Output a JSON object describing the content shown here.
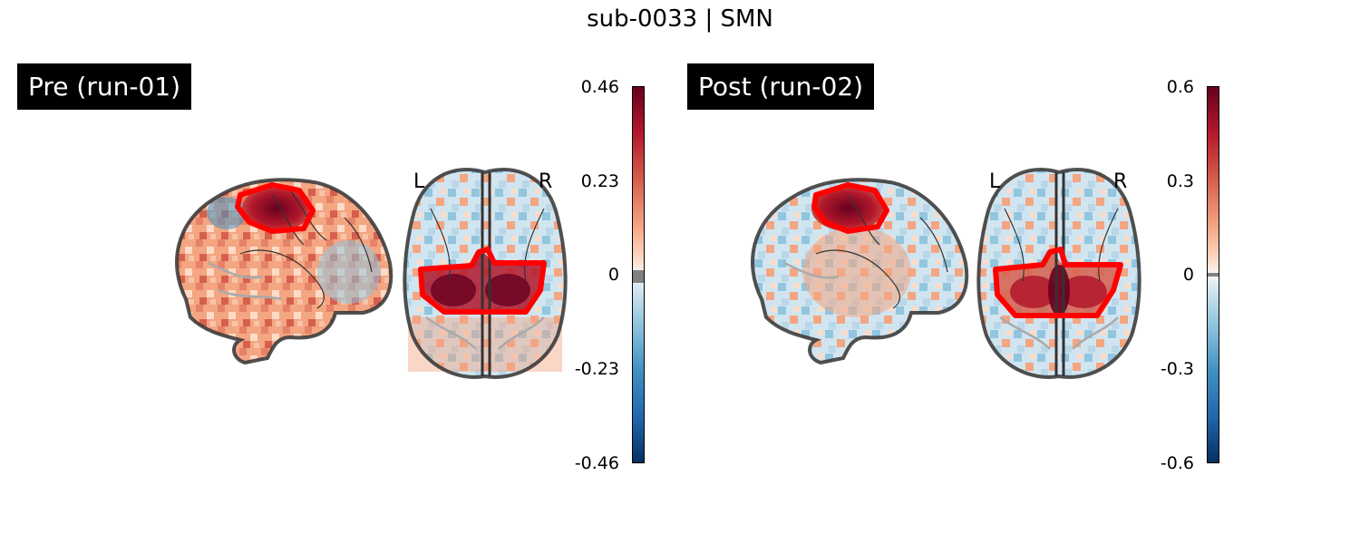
{
  "title": "sub-0033 | SMN",
  "panels": [
    {
      "label": "Pre (run-01)",
      "hemisphere_left": "L",
      "hemisphere_right": "R",
      "colorbar": {
        "ticks": [
          "0.46",
          "0.23",
          "0",
          "-0.23",
          "-0.46"
        ],
        "min": -0.46,
        "max": 0.46,
        "colormap": "RdBu_r"
      }
    },
    {
      "label": "Post (run-02)",
      "hemisphere_left": "L",
      "hemisphere_right": "R",
      "colorbar": {
        "ticks": [
          "0.6",
          "0.3",
          "0",
          "-0.3",
          "-0.6"
        ],
        "min": -0.6,
        "max": 0.6,
        "colormap": "RdBu_r"
      }
    }
  ],
  "colors": {
    "roi_outline": "#ff0000",
    "brain_outline": "#333333",
    "positive": "#67001f",
    "negative": "#053061"
  }
}
